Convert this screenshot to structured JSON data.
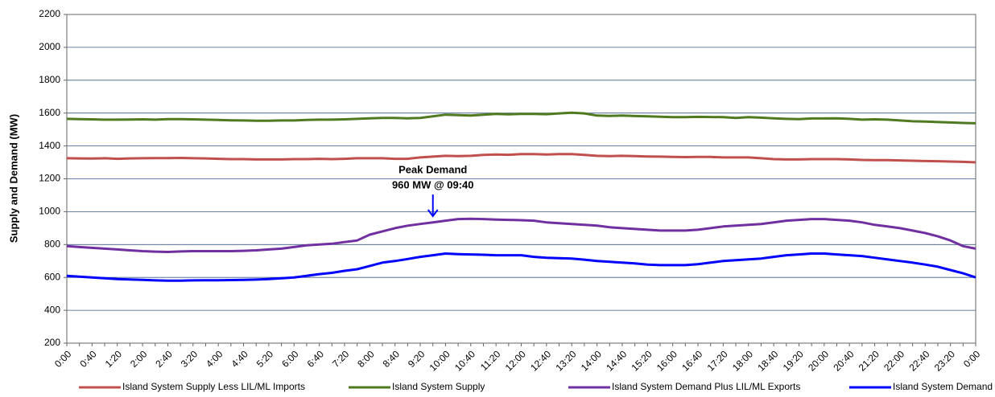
{
  "chart_data": {
    "type": "line",
    "y_label": "Supply and Demand (MW)",
    "annotations": [
      "Peak Demand",
      "960 MW @ 09:40"
    ],
    "categories": [
      "0:00",
      null,
      "0:40",
      null,
      "1:20",
      null,
      "2:00",
      null,
      "2:40",
      null,
      "3:20",
      null,
      "4:00",
      null,
      "4:40",
      null,
      "5:20",
      null,
      "6:00",
      null,
      "6:40",
      null,
      "7:20",
      null,
      "8:00",
      null,
      "8:40",
      null,
      "9:20",
      null,
      "10:00",
      null,
      "10:40",
      null,
      "11:20",
      null,
      "12:00",
      null,
      "12:40",
      null,
      "13:20",
      null,
      "14:00",
      null,
      "14:40",
      null,
      "15:20",
      null,
      "16:00",
      null,
      "16:40",
      null,
      "17:20",
      null,
      "18:00",
      null,
      "18:40",
      null,
      "19:20",
      null,
      "20:00",
      null,
      "20:40",
      null,
      "21:20",
      null,
      "22:00",
      null,
      "22:40",
      null,
      "23:20",
      null,
      "0:00"
    ],
    "series": [
      {
        "name": "Island System Supply Less LIL/ML Imports",
        "color": "#c0504d",
        "values": [
          1325,
          1324,
          1323,
          1325,
          1322,
          1324,
          1325,
          1326,
          1326,
          1327,
          1325,
          1324,
          1322,
          1320,
          1320,
          1318,
          1318,
          1318,
          1320,
          1320,
          1322,
          1320,
          1322,
          1325,
          1325,
          1325,
          1322,
          1322,
          1330,
          1335,
          1340,
          1338,
          1340,
          1345,
          1348,
          1346,
          1350,
          1350,
          1348,
          1350,
          1350,
          1345,
          1340,
          1338,
          1340,
          1338,
          1336,
          1335,
          1333,
          1332,
          1333,
          1333,
          1330,
          1330,
          1330,
          1325,
          1320,
          1318,
          1318,
          1320,
          1320,
          1320,
          1318,
          1315,
          1314,
          1314,
          1312,
          1310,
          1308,
          1307,
          1305,
          1303,
          1300
        ]
      },
      {
        "name": "Island System Supply",
        "color": "#4f7a1f",
        "values": [
          1565,
          1563,
          1562,
          1560,
          1560,
          1561,
          1562,
          1560,
          1563,
          1563,
          1562,
          1560,
          1558,
          1556,
          1555,
          1553,
          1553,
          1555,
          1555,
          1558,
          1560,
          1560,
          1562,
          1565,
          1568,
          1570,
          1570,
          1568,
          1570,
          1580,
          1590,
          1588,
          1585,
          1590,
          1595,
          1592,
          1595,
          1595,
          1593,
          1598,
          1602,
          1598,
          1585,
          1583,
          1585,
          1582,
          1580,
          1578,
          1575,
          1575,
          1577,
          1576,
          1575,
          1570,
          1575,
          1572,
          1568,
          1565,
          1563,
          1567,
          1567,
          1568,
          1565,
          1560,
          1562,
          1560,
          1555,
          1550,
          1548,
          1545,
          1543,
          1540,
          1538
        ]
      },
      {
        "name": "Island System Demand Plus LIL/ML Exports",
        "color": "#7030a0",
        "values": [
          790,
          785,
          780,
          775,
          770,
          765,
          760,
          757,
          755,
          758,
          760,
          760,
          760,
          760,
          762,
          765,
          770,
          775,
          785,
          795,
          800,
          805,
          815,
          825,
          860,
          880,
          900,
          915,
          925,
          935,
          945,
          955,
          957,
          955,
          952,
          950,
          948,
          945,
          935,
          930,
          925,
          920,
          915,
          905,
          900,
          895,
          890,
          885,
          885,
          885,
          890,
          900,
          910,
          915,
          920,
          925,
          935,
          945,
          950,
          955,
          955,
          950,
          945,
          935,
          920,
          910,
          900,
          885,
          870,
          850,
          825,
          790,
          775
        ]
      },
      {
        "name": "Island System Demand",
        "color": "#0000ff",
        "values": [
          610,
          605,
          600,
          595,
          590,
          588,
          585,
          582,
          580,
          580,
          582,
          583,
          583,
          584,
          585,
          587,
          590,
          595,
          600,
          610,
          620,
          628,
          640,
          650,
          670,
          690,
          700,
          712,
          725,
          735,
          745,
          742,
          740,
          738,
          735,
          735,
          735,
          725,
          720,
          717,
          715,
          708,
          700,
          695,
          690,
          685,
          678,
          675,
          675,
          675,
          680,
          690,
          700,
          705,
          710,
          715,
          725,
          735,
          740,
          745,
          745,
          740,
          735,
          730,
          720,
          710,
          700,
          690,
          678,
          665,
          645,
          625,
          600
        ]
      }
    ],
    "ylim": [
      200,
      2200
    ],
    "yticks": [
      200,
      400,
      600,
      800,
      1000,
      1200,
      1400,
      1600,
      1800,
      2000,
      2200
    ],
    "grid": true
  }
}
